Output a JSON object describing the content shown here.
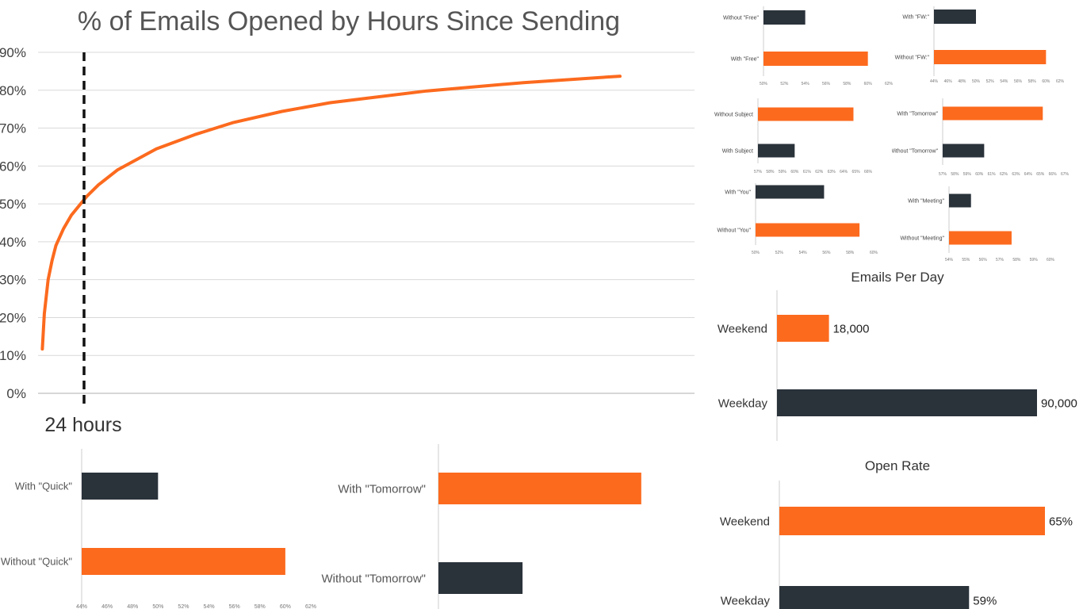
{
  "colors": {
    "orange": "#fc6a1e",
    "dark": "#2a323a",
    "grid": "#d9d9d9",
    "axis": "#cccccc",
    "text": "#555555"
  },
  "chart_data": [
    {
      "id": "main",
      "type": "line",
      "title": "% of Emails Opened by Hours Since Sending",
      "xlim": [
        0,
        300
      ],
      "ylim": [
        0,
        90
      ],
      "ytick_labels": [
        "0%",
        "10%",
        "20%",
        "30%",
        "40%",
        "50%",
        "60%",
        "70%",
        "80%",
        "90%"
      ],
      "grid": true,
      "annotation": {
        "x": 24,
        "label": "24 hours"
      },
      "series": [
        {
          "x": [
            1,
            2,
            4,
            6,
            8,
            12,
            16,
            20,
            24,
            30,
            40,
            60,
            80,
            100,
            125,
            150,
            200,
            250,
            300
          ],
          "values": [
            11.7,
            21,
            30,
            35,
            39,
            43.5,
            47,
            49.5,
            52,
            55,
            59,
            64.5,
            68.3,
            71.5,
            74.4,
            76.7,
            79.8,
            82,
            83.7
          ]
        }
      ]
    },
    {
      "id": "free",
      "type": "bar",
      "orientation": "horizontal",
      "categories": [
        "Without \"Free\"",
        "With \"Free\""
      ],
      "values": [
        54,
        60
      ],
      "colors": [
        "dark",
        "orange"
      ],
      "xlim": [
        50,
        62
      ],
      "xtick_labels": [
        "50%",
        "52%",
        "54%",
        "56%",
        "58%",
        "60%",
        "62%"
      ]
    },
    {
      "id": "fw",
      "type": "bar",
      "orientation": "horizontal",
      "categories": [
        "With \"FW:\"",
        "Without \"FW:\""
      ],
      "values": [
        50,
        60
      ],
      "colors": [
        "dark",
        "orange"
      ],
      "xlim": [
        44,
        62
      ],
      "xtick_labels": [
        "44%",
        "46%",
        "48%",
        "50%",
        "52%",
        "54%",
        "56%",
        "58%",
        "60%",
        "62%"
      ]
    },
    {
      "id": "subject",
      "type": "bar",
      "orientation": "horizontal",
      "categories": [
        "Without Subject",
        "With Subject"
      ],
      "values": [
        64.8,
        60
      ],
      "colors": [
        "orange",
        "dark"
      ],
      "xlim": [
        57,
        66
      ],
      "xtick_labels": [
        "57%",
        "58%",
        "59%",
        "60%",
        "61%",
        "62%",
        "63%",
        "64%",
        "65%",
        "66%"
      ]
    },
    {
      "id": "tomorrow-small",
      "type": "bar",
      "orientation": "horizontal",
      "categories": [
        "With \"Tomorrow\"",
        "Without \"Tomorrow\""
      ],
      "values": [
        65.2,
        60.4
      ],
      "colors": [
        "orange",
        "dark"
      ],
      "xlim": [
        57,
        67
      ],
      "xtick_labels": [
        "57%",
        "58%",
        "59%",
        "60%",
        "61%",
        "62%",
        "63%",
        "64%",
        "65%",
        "66%",
        "67%"
      ]
    },
    {
      "id": "you",
      "type": "bar",
      "orientation": "horizontal",
      "categories": [
        "With \"You\"",
        "Without \"You\""
      ],
      "values": [
        55.8,
        58.8
      ],
      "colors": [
        "dark",
        "orange"
      ],
      "xlim": [
        50,
        60
      ],
      "xtick_labels": [
        "50%",
        "52%",
        "54%",
        "56%",
        "58%",
        "60%"
      ]
    },
    {
      "id": "meeting",
      "type": "bar",
      "orientation": "horizontal",
      "categories": [
        "With \"Meeting\"",
        "Without \"Meeting\""
      ],
      "values": [
        55.3,
        57.7
      ],
      "colors": [
        "dark",
        "orange"
      ],
      "xlim": [
        54,
        60
      ],
      "xtick_labels": [
        "54%",
        "55%",
        "56%",
        "57%",
        "58%",
        "59%",
        "60%"
      ]
    },
    {
      "id": "emails-per-day",
      "type": "bar",
      "orientation": "horizontal",
      "title": "Emails Per Day",
      "categories": [
        "Weekend",
        "Weekday"
      ],
      "values": [
        18000,
        90000
      ],
      "value_labels": [
        "18,000",
        "90,000"
      ],
      "colors": [
        "orange",
        "dark"
      ],
      "xlim": [
        0,
        90000
      ]
    },
    {
      "id": "open-rate",
      "type": "bar",
      "orientation": "horizontal",
      "title": "Open Rate",
      "categories": [
        "Weekend",
        "Weekday"
      ],
      "values": [
        65,
        59
      ],
      "value_labels": [
        "65%",
        "59%"
      ],
      "colors": [
        "orange",
        "dark"
      ],
      "xlim": [
        44,
        65
      ]
    },
    {
      "id": "quick",
      "type": "bar",
      "orientation": "horizontal",
      "categories": [
        "With \"Quick\"",
        "Without \"Quick\""
      ],
      "values": [
        50,
        60
      ],
      "colors": [
        "dark",
        "orange"
      ],
      "xlim": [
        44,
        62
      ],
      "xtick_labels": [
        "44%",
        "46%",
        "48%",
        "50%",
        "52%",
        "54%",
        "56%",
        "58%",
        "60%",
        "62%"
      ]
    },
    {
      "id": "tomorrow-large",
      "type": "bar",
      "orientation": "horizontal",
      "categories": [
        "With \"Tomorrow\"",
        "Without \"Tomorrow\""
      ],
      "values": [
        65.2,
        60.4
      ],
      "colors": [
        "orange",
        "dark"
      ],
      "xlim": [
        57,
        67
      ]
    }
  ]
}
